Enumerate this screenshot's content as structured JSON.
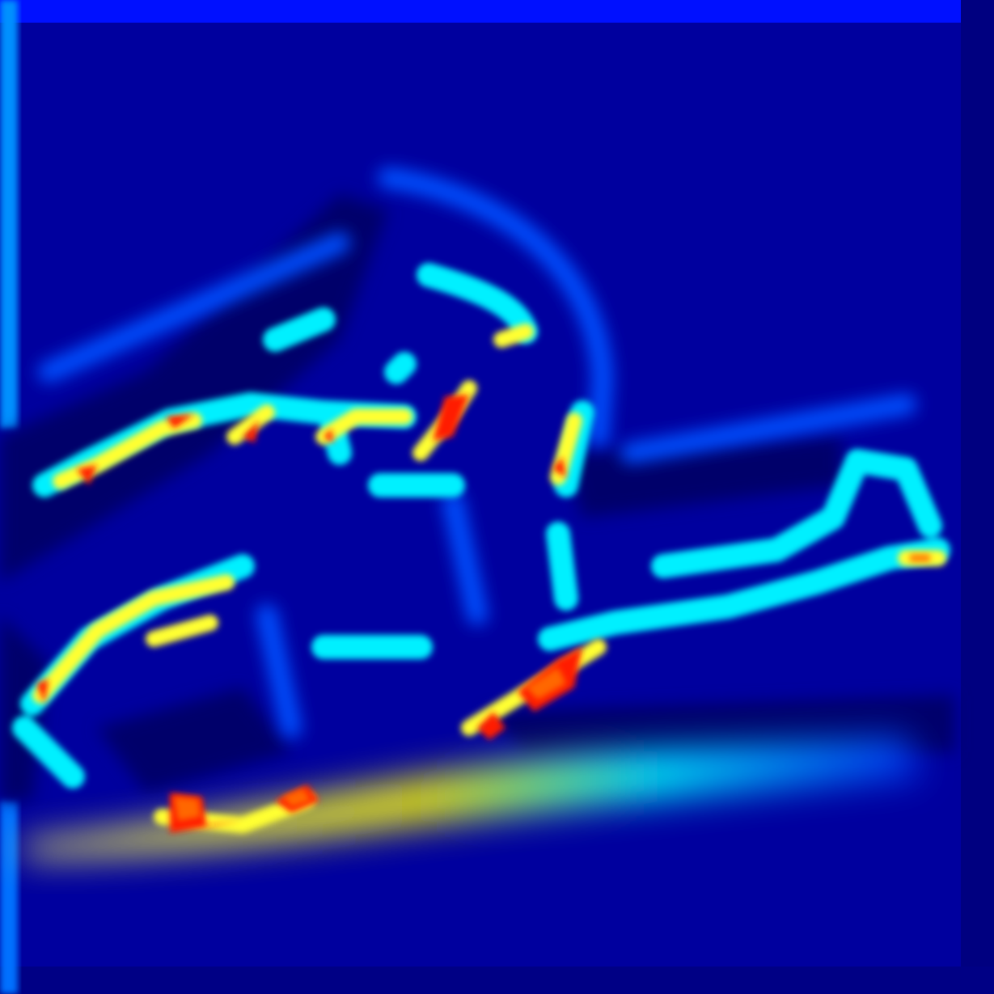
{
  "image": {
    "kind": "heatmap",
    "colormap": "jet",
    "colormap_stops": [
      "#00008f",
      "#0000ff",
      "#0080ff",
      "#00ffff",
      "#80ff80",
      "#ffff00",
      "#ff8000",
      "#ff0000",
      "#800000"
    ],
    "background_color": "#0000a0",
    "frame_color": "#0000ff",
    "left_edge_color": "#0090ff"
  }
}
